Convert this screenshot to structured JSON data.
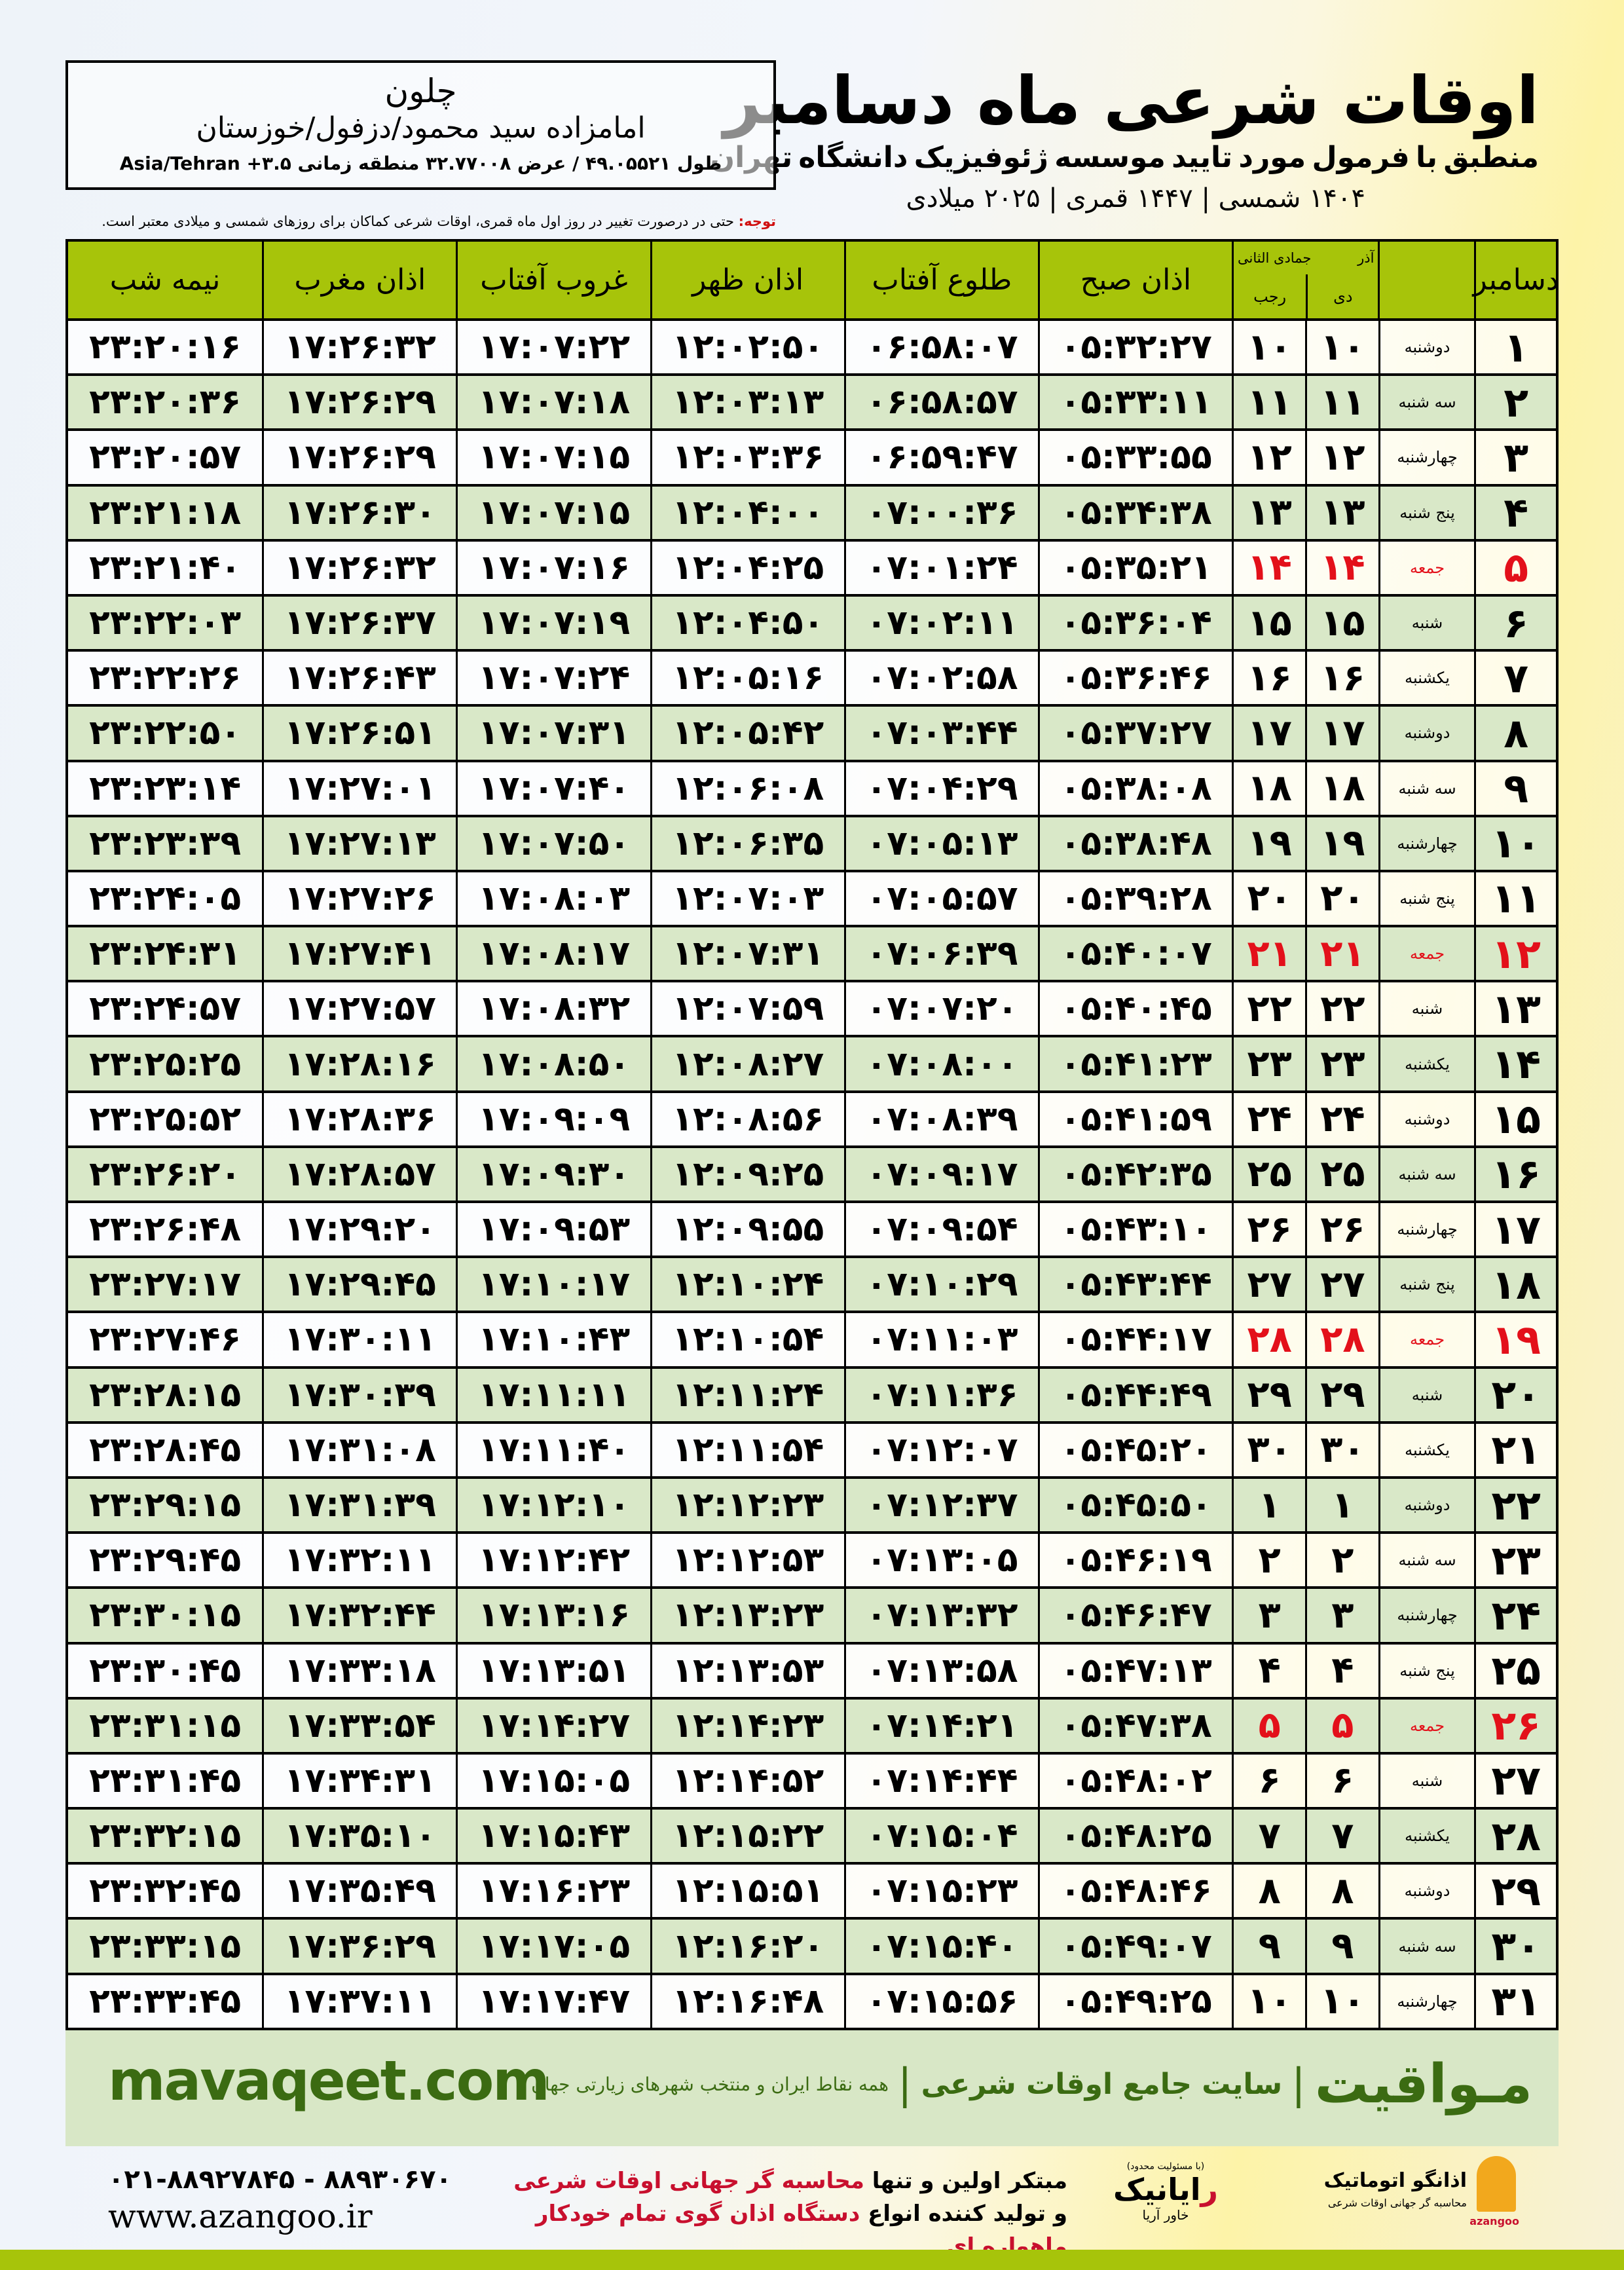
{
  "header": {
    "title": "اوقات شرعی ماه دسامبر",
    "subtitle": "منطبق با فرمول مورد تایید موسسه ژئوفیزیک دانشگاه تهران",
    "dates": "۱۴۰۴ شمسی | ۱۴۴۷ قمری | ۲۰۲۵ میلادی"
  },
  "location": {
    "name": "چلون",
    "place": "امامزاده سید محمود/دزفول/خوزستان",
    "coords": "طول ۴۹.۰۵۵۲۱ / عرض ۳۲.۷۷۰۰۸ منطقه زمانی ۳.۵+ Asia/Tehran"
  },
  "note": {
    "label": "توجه:",
    "text": " حتی در درصورت تغییر در روز اول ماه قمری، اوقات شرعی کماکان برای روزهای شمسی و میلادی معتبر است."
  },
  "columns": {
    "month": "دسامبر",
    "shamsi_top": "آذر",
    "shamsi_bottom": "دی",
    "qamari_top": "جمادی الثانی",
    "qamari_bottom": "رجب",
    "fajr": "اذان صبح",
    "sunrise": "طلوع آفتاب",
    "dhuhr": "اذان ظهر",
    "sunset": "غروب آفتاب",
    "maghrib": "اذان مغرب",
    "midnight": "نیمه شب"
  },
  "colors": {
    "header": "#a7c40a",
    "row_alt": "#d9e8c8",
    "holiday": "#e3101a",
    "brand": "#3b6b12"
  },
  "rows": [
    [
      "۱",
      "دوشنبه",
      "۱۰",
      "۱۰",
      "۰۵:۳۲:۲۷",
      "۰۶:۵۸:۰۷",
      "۱۲:۰۲:۵۰",
      "۱۷:۰۷:۲۲",
      "۱۷:۲۶:۳۲",
      "۲۳:۲۰:۱۶"
    ],
    [
      "۲",
      "سه شنبه",
      "۱۱",
      "۱۱",
      "۰۵:۳۳:۱۱",
      "۰۶:۵۸:۵۷",
      "۱۲:۰۳:۱۳",
      "۱۷:۰۷:۱۸",
      "۱۷:۲۶:۲۹",
      "۲۳:۲۰:۳۶"
    ],
    [
      "۳",
      "چهارشنبه",
      "۱۲",
      "۱۲",
      "۰۵:۳۳:۵۵",
      "۰۶:۵۹:۴۷",
      "۱۲:۰۳:۳۶",
      "۱۷:۰۷:۱۵",
      "۱۷:۲۶:۲۹",
      "۲۳:۲۰:۵۷"
    ],
    [
      "۴",
      "پنج شنبه",
      "۱۳",
      "۱۳",
      "۰۵:۳۴:۳۸",
      "۰۷:۰۰:۳۶",
      "۱۲:۰۴:۰۰",
      "۱۷:۰۷:۱۵",
      "۱۷:۲۶:۳۰",
      "۲۳:۲۱:۱۸"
    ],
    [
      "۵",
      "جمعه",
      "۱۴",
      "۱۴",
      "۰۵:۳۵:۲۱",
      "۰۷:۰۱:۲۴",
      "۱۲:۰۴:۲۵",
      "۱۷:۰۷:۱۶",
      "۱۷:۲۶:۳۲",
      "۲۳:۲۱:۴۰"
    ],
    [
      "۶",
      "شنبه",
      "۱۵",
      "۱۵",
      "۰۵:۳۶:۰۴",
      "۰۷:۰۲:۱۱",
      "۱۲:۰۴:۵۰",
      "۱۷:۰۷:۱۹",
      "۱۷:۲۶:۳۷",
      "۲۳:۲۲:۰۳"
    ],
    [
      "۷",
      "یکشنبه",
      "۱۶",
      "۱۶",
      "۰۵:۳۶:۴۶",
      "۰۷:۰۲:۵۸",
      "۱۲:۰۵:۱۶",
      "۱۷:۰۷:۲۴",
      "۱۷:۲۶:۴۳",
      "۲۳:۲۲:۲۶"
    ],
    [
      "۸",
      "دوشنبه",
      "۱۷",
      "۱۷",
      "۰۵:۳۷:۲۷",
      "۰۷:۰۳:۴۴",
      "۱۲:۰۵:۴۲",
      "۱۷:۰۷:۳۱",
      "۱۷:۲۶:۵۱",
      "۲۳:۲۲:۵۰"
    ],
    [
      "۹",
      "سه شنبه",
      "۱۸",
      "۱۸",
      "۰۵:۳۸:۰۸",
      "۰۷:۰۴:۲۹",
      "۱۲:۰۶:۰۸",
      "۱۷:۰۷:۴۰",
      "۱۷:۲۷:۰۱",
      "۲۳:۲۳:۱۴"
    ],
    [
      "۱۰",
      "چهارشنبه",
      "۱۹",
      "۱۹",
      "۰۵:۳۸:۴۸",
      "۰۷:۰۵:۱۳",
      "۱۲:۰۶:۳۵",
      "۱۷:۰۷:۵۰",
      "۱۷:۲۷:۱۳",
      "۲۳:۲۳:۳۹"
    ],
    [
      "۱۱",
      "پنج شنبه",
      "۲۰",
      "۲۰",
      "۰۵:۳۹:۲۸",
      "۰۷:۰۵:۵۷",
      "۱۲:۰۷:۰۳",
      "۱۷:۰۸:۰۳",
      "۱۷:۲۷:۲۶",
      "۲۳:۲۴:۰۵"
    ],
    [
      "۱۲",
      "جمعه",
      "۲۱",
      "۲۱",
      "۰۵:۴۰:۰۷",
      "۰۷:۰۶:۳۹",
      "۱۲:۰۷:۳۱",
      "۱۷:۰۸:۱۷",
      "۱۷:۲۷:۴۱",
      "۲۳:۲۴:۳۱"
    ],
    [
      "۱۳",
      "شنبه",
      "۲۲",
      "۲۲",
      "۰۵:۴۰:۴۵",
      "۰۷:۰۷:۲۰",
      "۱۲:۰۷:۵۹",
      "۱۷:۰۸:۳۲",
      "۱۷:۲۷:۵۷",
      "۲۳:۲۴:۵۷"
    ],
    [
      "۱۴",
      "یکشنبه",
      "۲۳",
      "۲۳",
      "۰۵:۴۱:۲۳",
      "۰۷:۰۸:۰۰",
      "۱۲:۰۸:۲۷",
      "۱۷:۰۸:۵۰",
      "۱۷:۲۸:۱۶",
      "۲۳:۲۵:۲۵"
    ],
    [
      "۱۵",
      "دوشنبه",
      "۲۴",
      "۲۴",
      "۰۵:۴۱:۵۹",
      "۰۷:۰۸:۳۹",
      "۱۲:۰۸:۵۶",
      "۱۷:۰۹:۰۹",
      "۱۷:۲۸:۳۶",
      "۲۳:۲۵:۵۲"
    ],
    [
      "۱۶",
      "سه شنبه",
      "۲۵",
      "۲۵",
      "۰۵:۴۲:۳۵",
      "۰۷:۰۹:۱۷",
      "۱۲:۰۹:۲۵",
      "۱۷:۰۹:۳۰",
      "۱۷:۲۸:۵۷",
      "۲۳:۲۶:۲۰"
    ],
    [
      "۱۷",
      "چهارشنبه",
      "۲۶",
      "۲۶",
      "۰۵:۴۳:۱۰",
      "۰۷:۰۹:۵۴",
      "۱۲:۰۹:۵۵",
      "۱۷:۰۹:۵۳",
      "۱۷:۲۹:۲۰",
      "۲۳:۲۶:۴۸"
    ],
    [
      "۱۸",
      "پنج شنبه",
      "۲۷",
      "۲۷",
      "۰۵:۴۳:۴۴",
      "۰۷:۱۰:۲۹",
      "۱۲:۱۰:۲۴",
      "۱۷:۱۰:۱۷",
      "۱۷:۲۹:۴۵",
      "۲۳:۲۷:۱۷"
    ],
    [
      "۱۹",
      "جمعه",
      "۲۸",
      "۲۸",
      "۰۵:۴۴:۱۷",
      "۰۷:۱۱:۰۳",
      "۱۲:۱۰:۵۴",
      "۱۷:۱۰:۴۳",
      "۱۷:۳۰:۱۱",
      "۲۳:۲۷:۴۶"
    ],
    [
      "۲۰",
      "شنبه",
      "۲۹",
      "۲۹",
      "۰۵:۴۴:۴۹",
      "۰۷:۱۱:۳۶",
      "۱۲:۱۱:۲۴",
      "۱۷:۱۱:۱۱",
      "۱۷:۳۰:۳۹",
      "۲۳:۲۸:۱۵"
    ],
    [
      "۲۱",
      "یکشنبه",
      "۳۰",
      "۳۰",
      "۰۵:۴۵:۲۰",
      "۰۷:۱۲:۰۷",
      "۱۲:۱۱:۵۴",
      "۱۷:۱۱:۴۰",
      "۱۷:۳۱:۰۸",
      "۲۳:۲۸:۴۵"
    ],
    [
      "۲۲",
      "دوشنبه",
      "۱",
      "۱",
      "۰۵:۴۵:۵۰",
      "۰۷:۱۲:۳۷",
      "۱۲:۱۲:۲۳",
      "۱۷:۱۲:۱۰",
      "۱۷:۳۱:۳۹",
      "۲۳:۲۹:۱۵"
    ],
    [
      "۲۳",
      "سه شنبه",
      "۲",
      "۲",
      "۰۵:۴۶:۱۹",
      "۰۷:۱۳:۰۵",
      "۱۲:۱۲:۵۳",
      "۱۷:۱۲:۴۲",
      "۱۷:۳۲:۱۱",
      "۲۳:۲۹:۴۵"
    ],
    [
      "۲۴",
      "چهارشنبه",
      "۳",
      "۳",
      "۰۵:۴۶:۴۷",
      "۰۷:۱۳:۳۲",
      "۱۲:۱۳:۲۳",
      "۱۷:۱۳:۱۶",
      "۱۷:۳۲:۴۴",
      "۲۳:۳۰:۱۵"
    ],
    [
      "۲۵",
      "پنج شنبه",
      "۴",
      "۴",
      "۰۵:۴۷:۱۳",
      "۰۷:۱۳:۵۸",
      "۱۲:۱۳:۵۳",
      "۱۷:۱۳:۵۱",
      "۱۷:۳۳:۱۸",
      "۲۳:۳۰:۴۵"
    ],
    [
      "۲۶",
      "جمعه",
      "۵",
      "۵",
      "۰۵:۴۷:۳۸",
      "۰۷:۱۴:۲۱",
      "۱۲:۱۴:۲۳",
      "۱۷:۱۴:۲۷",
      "۱۷:۳۳:۵۴",
      "۲۳:۳۱:۱۵"
    ],
    [
      "۲۷",
      "شنبه",
      "۶",
      "۶",
      "۰۵:۴۸:۰۲",
      "۰۷:۱۴:۴۴",
      "۱۲:۱۴:۵۲",
      "۱۷:۱۵:۰۵",
      "۱۷:۳۴:۳۱",
      "۲۳:۳۱:۴۵"
    ],
    [
      "۲۸",
      "یکشنبه",
      "۷",
      "۷",
      "۰۵:۴۸:۲۵",
      "۰۷:۱۵:۰۴",
      "۱۲:۱۵:۲۲",
      "۱۷:۱۵:۴۳",
      "۱۷:۳۵:۱۰",
      "۲۳:۳۲:۱۵"
    ],
    [
      "۲۹",
      "دوشنبه",
      "۸",
      "۸",
      "۰۵:۴۸:۴۶",
      "۰۷:۱۵:۲۳",
      "۱۲:۱۵:۵۱",
      "۱۷:۱۶:۲۳",
      "۱۷:۳۵:۴۹",
      "۲۳:۳۲:۴۵"
    ],
    [
      "۳۰",
      "سه شنبه",
      "۹",
      "۹",
      "۰۵:۴۹:۰۷",
      "۰۷:۱۵:۴۰",
      "۱۲:۱۶:۲۰",
      "۱۷:۱۷:۰۵",
      "۱۷:۳۶:۲۹",
      "۲۳:۳۳:۱۵"
    ],
    [
      "۳۱",
      "چهارشنبه",
      "۱۰",
      "۱۰",
      "۰۵:۴۹:۲۵",
      "۰۷:۱۵:۵۶",
      "۱۲:۱۶:۴۸",
      "۱۷:۱۷:۴۷",
      "۱۷:۳۷:۱۱",
      "۲۳:۳۳:۴۵"
    ]
  ],
  "holiday_weekday": "جمعه",
  "footer": {
    "site": "mavaqeet.com",
    "brand": "مـواقیت",
    "sep": "|",
    "tagline": "سایت جامع اوقات شرعی",
    "sub": "همه نقاط ایران و منتخب شهرهای زیارتی جهان",
    "phone": "۰۲۱-۸۸۹۲۷۸۴۵ - ۸۸۹۳۰۶۷۰",
    "web": "www.azangoo.ir",
    "ad1a": "مبتکر اولین و تنها ",
    "ad1b": "محاسبه گر جهانی اوقات شرعی",
    "ad2a": "و تولید کننده انواع ",
    "ad2b": "دستگاه اذان گوی تمام خودکار ماهواره ای",
    "logo1_small": "(با مسئولیت محدود)",
    "logo1_main_r": "ر",
    "logo1_main": "ایانیک",
    "logo1_sub": "خاور آریا",
    "logo2_main": "اذانگو اتوماتیک",
    "logo2_sub": "محاسبه گر جهانی اوقات شرعی",
    "logo2_latin": "azangoo"
  }
}
